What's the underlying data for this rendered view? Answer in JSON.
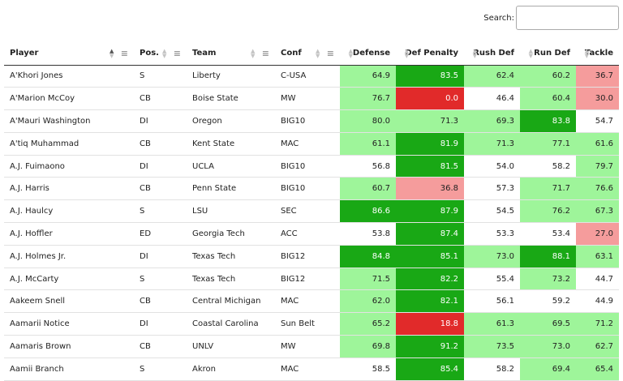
{
  "search": {
    "label": "Search:",
    "placeholder": "",
    "value": ""
  },
  "columns": [
    {
      "label": "Player",
      "numeric": false,
      "sorted": "asc"
    },
    {
      "label": "Pos.",
      "numeric": false
    },
    {
      "label": "Team",
      "numeric": false
    },
    {
      "label": "Conf",
      "numeric": false
    },
    {
      "label": "Defense",
      "numeric": true
    },
    {
      "label": "Def Penalty",
      "numeric": true
    },
    {
      "label": "Rush Def",
      "numeric": true
    },
    {
      "label": "Run Def",
      "numeric": true
    },
    {
      "label": "Tackle",
      "numeric": true
    }
  ],
  "colors": {
    "none": "#ffffff",
    "light_green": "#9ef59a",
    "dark_green": "#19a815",
    "light_red": "#f59c9c",
    "dark_red": "#e12a2a"
  },
  "rows": [
    {
      "player": "A'Khori Jones",
      "pos": "S",
      "team": "Liberty",
      "conf": "C-USA",
      "vals": [
        "64.9",
        "83.5",
        "62.4",
        "60.2",
        "36.7"
      ],
      "shade": [
        "light_green",
        "dark_green",
        "light_green",
        "light_green",
        "light_red"
      ]
    },
    {
      "player": "A'Marion McCoy",
      "pos": "CB",
      "team": "Boise State",
      "conf": "MW",
      "vals": [
        "76.7",
        "0.0",
        "46.4",
        "60.4",
        "30.0"
      ],
      "shade": [
        "light_green",
        "dark_red",
        "none",
        "light_green",
        "light_red"
      ]
    },
    {
      "player": "A'Mauri Washington",
      "pos": "DI",
      "team": "Oregon",
      "conf": "BIG10",
      "vals": [
        "80.0",
        "71.3",
        "69.3",
        "83.8",
        "54.7"
      ],
      "shade": [
        "light_green",
        "light_green",
        "light_green",
        "dark_green",
        "none"
      ]
    },
    {
      "player": "A'tiq Muhammad",
      "pos": "CB",
      "team": "Kent State",
      "conf": "MAC",
      "vals": [
        "61.1",
        "81.9",
        "71.3",
        "77.1",
        "61.6"
      ],
      "shade": [
        "light_green",
        "dark_green",
        "light_green",
        "light_green",
        "light_green"
      ]
    },
    {
      "player": "A.J. Fuimaono",
      "pos": "DI",
      "team": "UCLA",
      "conf": "BIG10",
      "vals": [
        "56.8",
        "81.5",
        "54.0",
        "58.2",
        "79.7"
      ],
      "shade": [
        "none",
        "dark_green",
        "none",
        "none",
        "light_green"
      ]
    },
    {
      "player": "A.J. Harris",
      "pos": "CB",
      "team": "Penn State",
      "conf": "BIG10",
      "vals": [
        "60.7",
        "36.8",
        "57.3",
        "71.7",
        "76.6"
      ],
      "shade": [
        "light_green",
        "light_red",
        "none",
        "light_green",
        "light_green"
      ]
    },
    {
      "player": "A.J. Haulcy",
      "pos": "S",
      "team": "LSU",
      "conf": "SEC",
      "vals": [
        "86.6",
        "87.9",
        "54.5",
        "76.2",
        "67.3"
      ],
      "shade": [
        "dark_green",
        "dark_green",
        "none",
        "light_green",
        "light_green"
      ]
    },
    {
      "player": "A.J. Hoffler",
      "pos": "ED",
      "team": "Georgia Tech",
      "conf": "ACC",
      "vals": [
        "53.8",
        "87.4",
        "53.3",
        "53.4",
        "27.0"
      ],
      "shade": [
        "none",
        "dark_green",
        "none",
        "none",
        "light_red"
      ]
    },
    {
      "player": "A.J. Holmes Jr.",
      "pos": "DI",
      "team": "Texas Tech",
      "conf": "BIG12",
      "vals": [
        "84.8",
        "85.1",
        "73.0",
        "88.1",
        "63.1"
      ],
      "shade": [
        "dark_green",
        "dark_green",
        "light_green",
        "dark_green",
        "light_green"
      ]
    },
    {
      "player": "A.J. McCarty",
      "pos": "S",
      "team": "Texas Tech",
      "conf": "BIG12",
      "vals": [
        "71.5",
        "82.2",
        "55.4",
        "73.2",
        "44.7"
      ],
      "shade": [
        "light_green",
        "dark_green",
        "none",
        "light_green",
        "none"
      ]
    },
    {
      "player": "Aakeem Snell",
      "pos": "CB",
      "team": "Central Michigan",
      "conf": "MAC",
      "vals": [
        "62.0",
        "82.1",
        "56.1",
        "59.2",
        "44.9"
      ],
      "shade": [
        "light_green",
        "dark_green",
        "none",
        "none",
        "none"
      ]
    },
    {
      "player": "Aamarii Notice",
      "pos": "DI",
      "team": "Coastal Carolina",
      "conf": "Sun Belt",
      "vals": [
        "65.2",
        "18.8",
        "61.3",
        "69.5",
        "71.2"
      ],
      "shade": [
        "light_green",
        "dark_red",
        "light_green",
        "light_green",
        "light_green"
      ]
    },
    {
      "player": "Aamaris Brown",
      "pos": "CB",
      "team": "UNLV",
      "conf": "MW",
      "vals": [
        "69.8",
        "91.2",
        "73.5",
        "73.0",
        "62.7"
      ],
      "shade": [
        "light_green",
        "dark_green",
        "light_green",
        "light_green",
        "light_green"
      ]
    },
    {
      "player": "Aamii Branch",
      "pos": "S",
      "team": "Akron",
      "conf": "MAC",
      "vals": [
        "58.5",
        "85.4",
        "58.2",
        "69.4",
        "65.4"
      ],
      "shade": [
        "none",
        "dark_green",
        "none",
        "light_green",
        "light_green"
      ]
    }
  ]
}
